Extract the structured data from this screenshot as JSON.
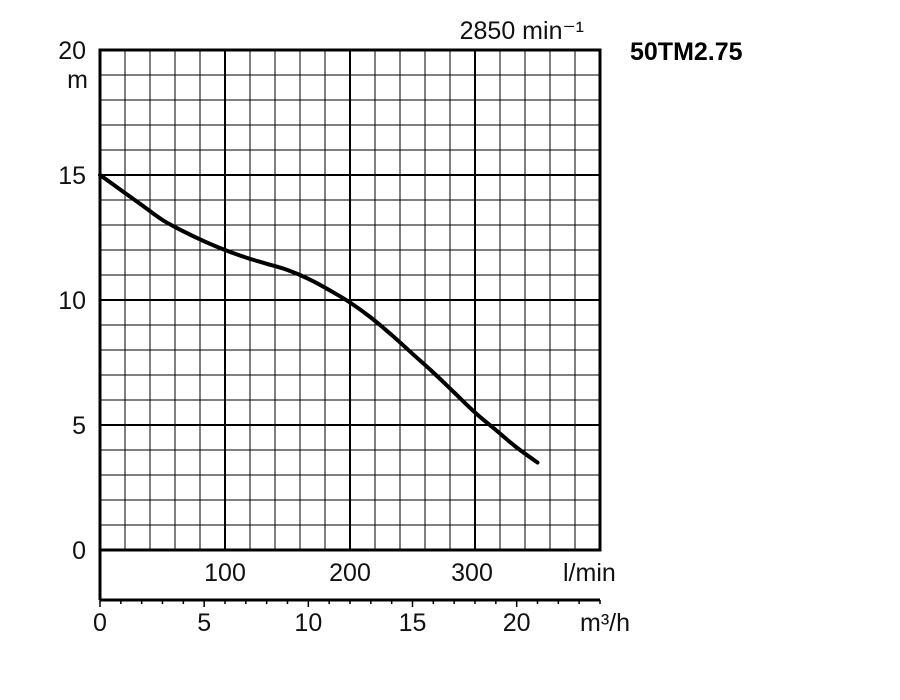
{
  "chart_data": {
    "type": "line",
    "title": "50TM2.75",
    "speed_label": "2850 min⁻¹",
    "ylabel": "m",
    "xlabel_primary": "m³/h",
    "xlabel_secondary_unit": "l/min",
    "xlim": [
      0,
      24
    ],
    "ylim": [
      0,
      20
    ],
    "grid": true,
    "y_ticks": [
      "0",
      "5",
      "10",
      "15",
      "20"
    ],
    "x_ticks_m3h": [
      "0",
      "5",
      "10",
      "15",
      "20"
    ],
    "x_ticks_lmin": [
      "100",
      "200",
      "300"
    ],
    "series": [
      {
        "x": [
          0,
          1,
          2,
          3,
          4,
          5,
          6,
          7,
          8,
          9,
          10,
          11,
          12,
          13,
          14,
          15,
          16,
          17,
          18,
          19,
          20,
          21
        ],
        "y": [
          15.0,
          14.4,
          13.8,
          13.2,
          12.75,
          12.35,
          12.0,
          11.7,
          11.45,
          11.2,
          10.85,
          10.4,
          9.9,
          9.3,
          8.6,
          7.85,
          7.1,
          6.3,
          5.5,
          4.8,
          4.1,
          3.5
        ]
      }
    ]
  }
}
